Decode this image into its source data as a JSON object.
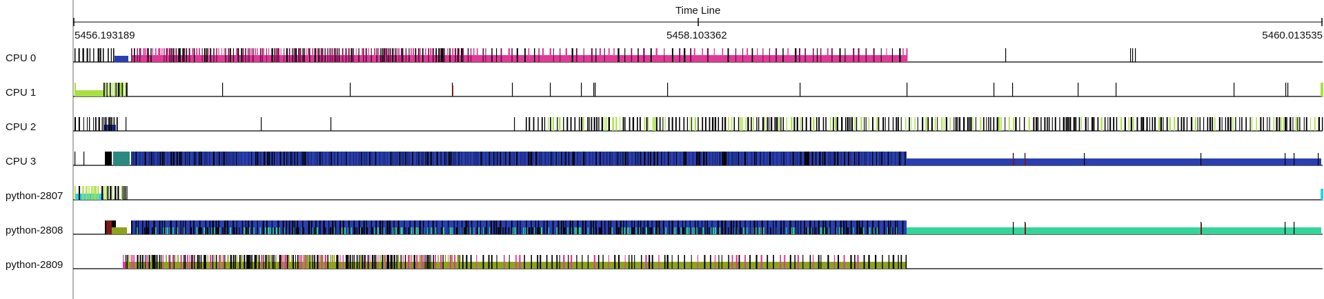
{
  "timeline": {
    "title": "Time Line",
    "ticks": [
      "5456.193189",
      "5458.103362",
      "5460.013535"
    ]
  },
  "rows": [
    {
      "label": "CPU 0"
    },
    {
      "label": "CPU 1"
    },
    {
      "label": "CPU 2"
    },
    {
      "label": "CPU 3"
    },
    {
      "label": "python-2807"
    },
    {
      "label": "python-2808"
    },
    {
      "label": "python-2809"
    }
  ],
  "colors": {
    "pink": "#de3a96",
    "blue": "#2a3fb0",
    "lime": "#a8e040",
    "cyan": "#27d2f0",
    "teal": "#2a8a80",
    "mint": "#35d49a",
    "olive": "#8ea21e",
    "dark-red": "#7a1b1b",
    "grey-frame": "#9a9a9a",
    "trace-black": "#000000"
  }
}
